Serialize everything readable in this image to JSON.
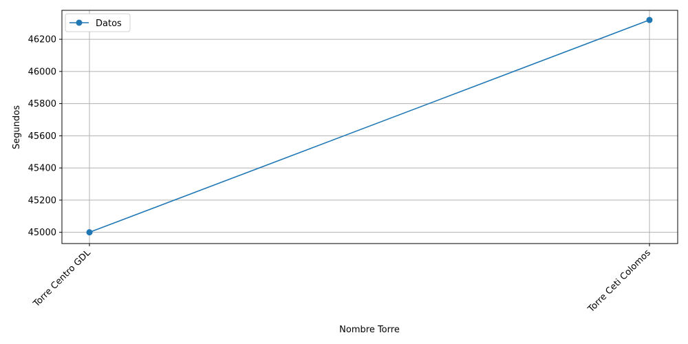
{
  "chart_data": {
    "type": "line",
    "title": "",
    "xlabel": "Nombre Torre",
    "ylabel": "Segundos",
    "categories": [
      "Torre Centro GDL",
      "Torre Ceti Colomos"
    ],
    "series": [
      {
        "name": "Datos",
        "values": [
          45000,
          46320
        ],
        "color": "#1f77b4",
        "marker": "circle"
      }
    ],
    "ylim": [
      44930,
      46380
    ],
    "yticks": [
      45000,
      45200,
      45400,
      45600,
      45800,
      46000,
      46200
    ],
    "grid": true,
    "legend": "top-left",
    "xtick_rotation": 45
  }
}
